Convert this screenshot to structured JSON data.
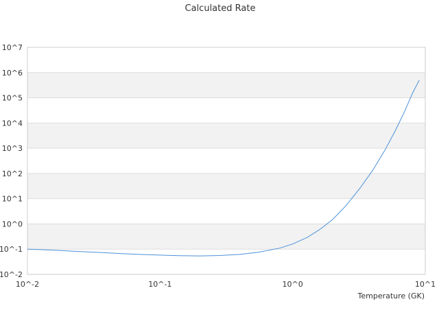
{
  "chart_data": {
    "type": "line",
    "title": "Calculated Rate",
    "xlabel": "Temperature (GK)",
    "ylabel": "",
    "x_scale": "log",
    "y_scale": "log",
    "xlim": [
      0.01,
      10
    ],
    "ylim": [
      0.01,
      10000000
    ],
    "x_ticks": [
      {
        "value": 0.01,
        "label": "10^-2"
      },
      {
        "value": 0.1,
        "label": "10^-1"
      },
      {
        "value": 1,
        "label": "10^0"
      },
      {
        "value": 10,
        "label": "10^1"
      }
    ],
    "y_ticks": [
      {
        "value": 0.01,
        "label": "10^-2"
      },
      {
        "value": 0.1,
        "label": "10^-1"
      },
      {
        "value": 1,
        "label": "10^0"
      },
      {
        "value": 10,
        "label": "10^1"
      },
      {
        "value": 100,
        "label": "10^2"
      },
      {
        "value": 1000,
        "label": "10^3"
      },
      {
        "value": 10000,
        "label": "10^4"
      },
      {
        "value": 100000,
        "label": "10^5"
      },
      {
        "value": 1000000,
        "label": "10^6"
      },
      {
        "value": 10000000,
        "label": "10^7"
      }
    ],
    "grid": "horizontal bands",
    "colors": {
      "series": "#4a90d9",
      "band": "#f2f2f2",
      "grid": "#dddddd",
      "frame": "#cccccc"
    },
    "series": [
      {
        "x": [
          0.01,
          0.013,
          0.018,
          0.025,
          0.035,
          0.05,
          0.07,
          0.1,
          0.14,
          0.2,
          0.28,
          0.4,
          0.55,
          0.8,
          1.0,
          1.3,
          1.6,
          2.0,
          2.5,
          3.2,
          4.0,
          5.0,
          6.0,
          7.0,
          8.0,
          9.0
        ],
        "y": [
          0.1,
          0.095,
          0.088,
          0.08,
          0.074,
          0.067,
          0.062,
          0.058,
          0.055,
          0.054,
          0.056,
          0.062,
          0.075,
          0.11,
          0.16,
          0.3,
          0.6,
          1.5,
          5,
          25,
          130,
          900,
          5500,
          30000,
          150000,
          500000
        ]
      }
    ]
  }
}
